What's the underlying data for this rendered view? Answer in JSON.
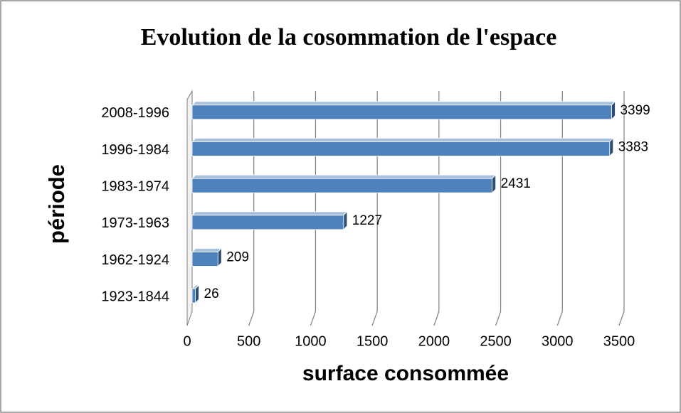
{
  "chart_data": {
    "type": "bar",
    "orientation": "horizontal",
    "title": "Evolution de la cosommation de l'espace",
    "x_label": "surface consommée",
    "y_label": "période",
    "categories": [
      "1923-1844",
      "1962-1924",
      "1973-1963",
      "1983-1974",
      "1996-1984",
      "2008-1996"
    ],
    "values": [
      26,
      209,
      1227,
      2431,
      3383,
      3399
    ],
    "color": "#4f81bd",
    "xlim": [
      0,
      3500
    ],
    "xticks": [
      0,
      500,
      1000,
      1500,
      2000,
      2500,
      3000,
      3500
    ],
    "grid": true
  }
}
